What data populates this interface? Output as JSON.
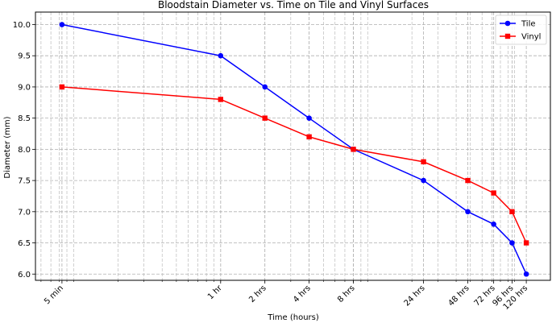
{
  "chart_data": {
    "type": "line",
    "title": "Bloodstain Diameter vs. Time on Tile and Vinyl Surfaces",
    "xlabel": "Time (hours)",
    "ylabel": "Diameter (mm)",
    "x_scale": "log",
    "x_tick_labels": [
      "5 min",
      "1 hr",
      "2 hrs",
      "4 hrs",
      "8 hrs",
      "24 hrs",
      "48 hrs",
      "72 hrs",
      "96 hrs",
      "120 hrs"
    ],
    "x_hours": [
      0.0833,
      1,
      2,
      4,
      8,
      24,
      48,
      72,
      96,
      120
    ],
    "ylim": [
      5.9,
      10.2
    ],
    "y_ticks": [
      "6.0",
      "6.5",
      "7.0",
      "7.5",
      "8.0",
      "8.5",
      "9.0",
      "9.5",
      "10.0"
    ],
    "grid": true,
    "legend_position": "top-right",
    "series": [
      {
        "name": "Tile",
        "color": "#0000ff",
        "marker": "circle",
        "values": [
          10.0,
          9.5,
          9.0,
          8.5,
          8.0,
          7.5,
          7.0,
          6.8,
          6.5,
          6.0
        ]
      },
      {
        "name": "Vinyl",
        "color": "#ff0000",
        "marker": "square",
        "values": [
          9.0,
          8.8,
          8.5,
          8.2,
          8.0,
          7.8,
          7.5,
          7.3,
          7.0,
          6.5
        ]
      }
    ]
  }
}
